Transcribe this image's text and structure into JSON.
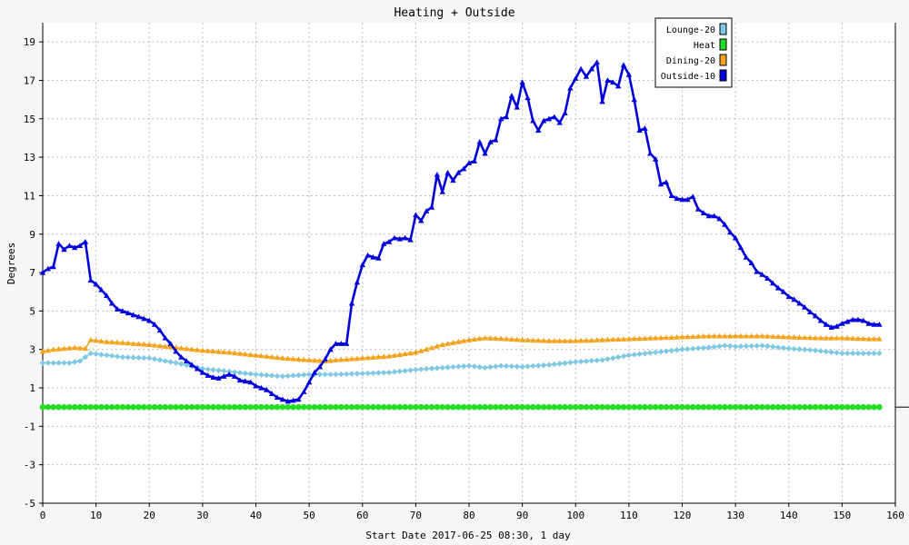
{
  "chart_data": {
    "type": "line",
    "title": "Heating + Outside",
    "xlabel": "Start Date 2017-06-25 08:30, 1 day",
    "ylabel": "Degrees",
    "xlim": [
      0,
      160
    ],
    "ylim": [
      -5,
      20
    ],
    "x_ticks": [
      0,
      10,
      20,
      30,
      40,
      50,
      60,
      70,
      80,
      90,
      100,
      110,
      120,
      130,
      140,
      150,
      160
    ],
    "y_ticks": [
      -5,
      -3,
      -1,
      1,
      3,
      5,
      7,
      9,
      11,
      13,
      15,
      17,
      19
    ],
    "grid": true,
    "legend_position": "top-right",
    "series": [
      {
        "name": "Lounge-20",
        "color": "#7ec8e3",
        "marker": "diamond",
        "values": [
          [
            0,
            2.3
          ],
          [
            5,
            2.3
          ],
          [
            7,
            2.4
          ],
          [
            9,
            2.8
          ],
          [
            12,
            2.7
          ],
          [
            15,
            2.6
          ],
          [
            20,
            2.55
          ],
          [
            25,
            2.3
          ],
          [
            30,
            2.0
          ],
          [
            35,
            1.85
          ],
          [
            40,
            1.7
          ],
          [
            45,
            1.6
          ],
          [
            50,
            1.7
          ],
          [
            55,
            1.7
          ],
          [
            60,
            1.75
          ],
          [
            65,
            1.8
          ],
          [
            70,
            1.95
          ],
          [
            75,
            2.05
          ],
          [
            80,
            2.15
          ],
          [
            83,
            2.05
          ],
          [
            86,
            2.15
          ],
          [
            90,
            2.1
          ],
          [
            95,
            2.2
          ],
          [
            100,
            2.35
          ],
          [
            105,
            2.45
          ],
          [
            110,
            2.7
          ],
          [
            115,
            2.85
          ],
          [
            120,
            3.0
          ],
          [
            125,
            3.1
          ],
          [
            128,
            3.2
          ],
          [
            130,
            3.15
          ],
          [
            135,
            3.2
          ],
          [
            140,
            3.05
          ],
          [
            145,
            2.95
          ],
          [
            150,
            2.8
          ],
          [
            155,
            2.8
          ],
          [
            157,
            2.8
          ]
        ]
      },
      {
        "name": "Heat",
        "color": "#22dd22",
        "marker": "circle",
        "values": [
          [
            0,
            0
          ],
          [
            157,
            0
          ]
        ]
      },
      {
        "name": "Dining-20",
        "color": "#f5a21b",
        "marker": "triangle",
        "values": [
          [
            0,
            2.9
          ],
          [
            2,
            3.0
          ],
          [
            4,
            3.05
          ],
          [
            6,
            3.1
          ],
          [
            8,
            3.05
          ],
          [
            9,
            3.5
          ],
          [
            12,
            3.4
          ],
          [
            15,
            3.35
          ],
          [
            20,
            3.25
          ],
          [
            25,
            3.1
          ],
          [
            30,
            2.95
          ],
          [
            35,
            2.85
          ],
          [
            40,
            2.7
          ],
          [
            45,
            2.55
          ],
          [
            50,
            2.45
          ],
          [
            53,
            2.4
          ],
          [
            55,
            2.45
          ],
          [
            60,
            2.55
          ],
          [
            65,
            2.65
          ],
          [
            70,
            2.85
          ],
          [
            75,
            3.25
          ],
          [
            80,
            3.5
          ],
          [
            83,
            3.6
          ],
          [
            87,
            3.55
          ],
          [
            90,
            3.5
          ],
          [
            95,
            3.45
          ],
          [
            100,
            3.45
          ],
          [
            105,
            3.5
          ],
          [
            110,
            3.55
          ],
          [
            115,
            3.6
          ],
          [
            120,
            3.65
          ],
          [
            125,
            3.7
          ],
          [
            130,
            3.7
          ],
          [
            135,
            3.7
          ],
          [
            140,
            3.65
          ],
          [
            145,
            3.6
          ],
          [
            150,
            3.6
          ],
          [
            155,
            3.55
          ],
          [
            157,
            3.55
          ]
        ]
      },
      {
        "name": "Outside-10",
        "color": "#0000dd",
        "marker": "triangle",
        "values": [
          [
            0,
            7.0
          ],
          [
            1,
            7.2
          ],
          [
            2,
            7.3
          ],
          [
            3,
            8.5
          ],
          [
            4,
            8.2
          ],
          [
            5,
            8.4
          ],
          [
            6,
            8.3
          ],
          [
            7,
            8.4
          ],
          [
            8,
            8.6
          ],
          [
            9,
            6.6
          ],
          [
            10,
            6.4
          ],
          [
            11,
            6.1
          ],
          [
            12,
            5.8
          ],
          [
            13,
            5.4
          ],
          [
            14,
            5.1
          ],
          [
            15,
            5.0
          ],
          [
            16,
            4.9
          ],
          [
            17,
            4.8
          ],
          [
            18,
            4.7
          ],
          [
            19,
            4.6
          ],
          [
            20,
            4.5
          ],
          [
            21,
            4.3
          ],
          [
            22,
            4.0
          ],
          [
            23,
            3.6
          ],
          [
            24,
            3.3
          ],
          [
            25,
            2.9
          ],
          [
            26,
            2.6
          ],
          [
            27,
            2.4
          ],
          [
            28,
            2.2
          ],
          [
            29,
            2.0
          ],
          [
            30,
            1.8
          ],
          [
            31,
            1.65
          ],
          [
            32,
            1.55
          ],
          [
            33,
            1.5
          ],
          [
            34,
            1.6
          ],
          [
            35,
            1.7
          ],
          [
            36,
            1.6
          ],
          [
            37,
            1.4
          ],
          [
            38,
            1.35
          ],
          [
            39,
            1.3
          ],
          [
            40,
            1.1
          ],
          [
            41,
            1.0
          ],
          [
            42,
            0.9
          ],
          [
            43,
            0.7
          ],
          [
            44,
            0.5
          ],
          [
            45,
            0.4
          ],
          [
            46,
            0.3
          ],
          [
            47,
            0.35
          ],
          [
            48,
            0.4
          ],
          [
            49,
            0.8
          ],
          [
            50,
            1.3
          ],
          [
            51,
            1.8
          ],
          [
            52,
            2.1
          ],
          [
            53,
            2.5
          ],
          [
            54,
            3.0
          ],
          [
            55,
            3.3
          ],
          [
            56,
            3.3
          ],
          [
            57,
            3.3
          ],
          [
            58,
            5.4
          ],
          [
            59,
            6.5
          ],
          [
            60,
            7.4
          ],
          [
            61,
            7.9
          ],
          [
            62,
            7.8
          ],
          [
            63,
            7.75
          ],
          [
            64,
            8.5
          ],
          [
            65,
            8.6
          ],
          [
            66,
            8.8
          ],
          [
            67,
            8.75
          ],
          [
            68,
            8.8
          ],
          [
            69,
            8.7
          ],
          [
            70,
            10.0
          ],
          [
            71,
            9.7
          ],
          [
            72,
            10.2
          ],
          [
            73,
            10.4
          ],
          [
            74,
            12.1
          ],
          [
            75,
            11.2
          ],
          [
            76,
            12.2
          ],
          [
            77,
            11.8
          ],
          [
            78,
            12.2
          ],
          [
            79,
            12.4
          ],
          [
            80,
            12.7
          ],
          [
            81,
            12.8
          ],
          [
            82,
            13.8
          ],
          [
            83,
            13.2
          ],
          [
            84,
            13.8
          ],
          [
            85,
            13.9
          ],
          [
            86,
            15.0
          ],
          [
            87,
            15.1
          ],
          [
            88,
            16.2
          ],
          [
            89,
            15.6
          ],
          [
            90,
            16.9
          ],
          [
            91,
            16.1
          ],
          [
            92,
            14.9
          ],
          [
            93,
            14.4
          ],
          [
            94,
            14.9
          ],
          [
            95,
            15.0
          ],
          [
            96,
            15.1
          ],
          [
            97,
            14.8
          ],
          [
            98,
            15.3
          ],
          [
            99,
            16.6
          ],
          [
            100,
            17.1
          ],
          [
            101,
            17.6
          ],
          [
            102,
            17.2
          ],
          [
            103,
            17.6
          ],
          [
            104,
            17.95
          ],
          [
            105,
            15.9
          ],
          [
            106,
            17.0
          ],
          [
            107,
            16.9
          ],
          [
            108,
            16.7
          ],
          [
            109,
            17.8
          ],
          [
            110,
            17.3
          ],
          [
            111,
            16.0
          ],
          [
            112,
            14.4
          ],
          [
            113,
            14.5
          ],
          [
            114,
            13.2
          ],
          [
            115,
            12.9
          ],
          [
            116,
            11.6
          ],
          [
            117,
            11.7
          ],
          [
            118,
            11.0
          ],
          [
            119,
            10.85
          ],
          [
            120,
            10.8
          ],
          [
            121,
            10.8
          ],
          [
            122,
            10.95
          ],
          [
            123,
            10.3
          ],
          [
            124,
            10.1
          ],
          [
            125,
            9.95
          ],
          [
            126,
            9.95
          ],
          [
            127,
            9.8
          ],
          [
            128,
            9.5
          ],
          [
            129,
            9.1
          ],
          [
            130,
            8.8
          ],
          [
            131,
            8.3
          ],
          [
            132,
            7.8
          ],
          [
            133,
            7.5
          ],
          [
            134,
            7.05
          ],
          [
            135,
            6.9
          ],
          [
            136,
            6.7
          ],
          [
            137,
            6.45
          ],
          [
            138,
            6.2
          ],
          [
            139,
            6.0
          ],
          [
            140,
            5.75
          ],
          [
            141,
            5.6
          ],
          [
            142,
            5.4
          ],
          [
            143,
            5.2
          ],
          [
            144,
            4.95
          ],
          [
            145,
            4.75
          ],
          [
            146,
            4.5
          ],
          [
            147,
            4.3
          ],
          [
            148,
            4.15
          ],
          [
            149,
            4.2
          ],
          [
            150,
            4.35
          ],
          [
            151,
            4.45
          ],
          [
            152,
            4.55
          ],
          [
            153,
            4.55
          ],
          [
            154,
            4.5
          ],
          [
            155,
            4.35
          ],
          [
            156,
            4.3
          ],
          [
            157,
            4.3
          ]
        ]
      }
    ]
  }
}
